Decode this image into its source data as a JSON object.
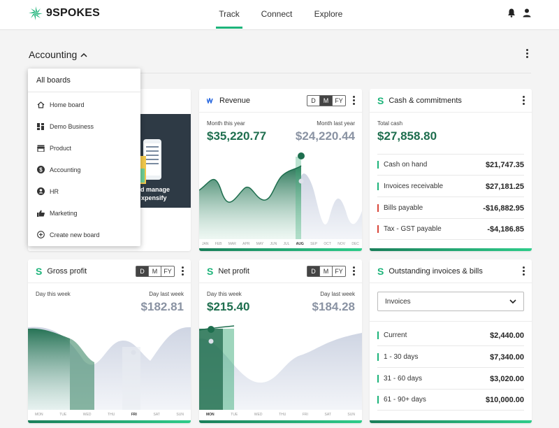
{
  "brand": {
    "name": "9SPOKES"
  },
  "nav": {
    "tabs": [
      "Track",
      "Connect",
      "Explore"
    ]
  },
  "board": {
    "title": "Accounting"
  },
  "dropdown": {
    "title": "All boards",
    "items": [
      {
        "label": "Home board",
        "icon": "home-icon"
      },
      {
        "label": "Demo Business",
        "icon": "dashboard-icon"
      },
      {
        "label": "Product",
        "icon": "store-icon"
      },
      {
        "label": "Accounting",
        "icon": "dollar-circle-icon"
      },
      {
        "label": "HR",
        "icon": "person-circle-icon"
      },
      {
        "label": "Marketing",
        "icon": "thumbs-up-icon"
      },
      {
        "label": "Create new board",
        "icon": "add-circle-icon"
      }
    ]
  },
  "promo": {
    "text_line1": "d manage",
    "text_line2": "xpensify"
  },
  "period": {
    "d": "D",
    "m": "M",
    "fy": "FY"
  },
  "revenue": {
    "title": "Revenue",
    "label_current": "Month this year",
    "label_previous": "Month last year",
    "value_current": "$35,220.77",
    "value_previous": "$24,220.44",
    "selected_period": "M",
    "months": [
      "JAN",
      "FEB",
      "MAR",
      "APR",
      "MAY",
      "JUN",
      "JUL",
      "AUG",
      "SEP",
      "OCT",
      "NOV",
      "DEC"
    ],
    "current_month": "AUG"
  },
  "cash": {
    "title": "Cash & commitments",
    "label_total": "Total cash",
    "total": "$27,858.80",
    "rows": [
      {
        "name": "Cash on hand",
        "value": "$21,747.35",
        "color": "#1db47a"
      },
      {
        "name": "Invoices receivable",
        "value": "$27,181.25",
        "color": "#1db47a"
      },
      {
        "name": "Bills payable",
        "value": "-$16,882.95",
        "color": "#d9463a"
      },
      {
        "name": "Tax - GST payable",
        "value": "-$4,186.85",
        "color": "#d9463a"
      }
    ]
  },
  "gross": {
    "title": "Gross profit",
    "label_current": "Day this week",
    "label_previous": "Day last week",
    "value_previous": "$182.81",
    "selected_period": "D",
    "days": [
      "MON",
      "TUE",
      "WED",
      "THU",
      "FRI",
      "SAT",
      "SUN"
    ],
    "current_day": "FRI"
  },
  "net": {
    "title": "Net profit",
    "label_current": "Day this week",
    "label_previous": "Day last week",
    "value_current": "$215.40",
    "value_previous": "$184.28",
    "selected_period": "D",
    "days": [
      "MON",
      "TUE",
      "WED",
      "THU",
      "FRI",
      "SAT",
      "SUN"
    ],
    "current_day": "MON"
  },
  "outstanding": {
    "title": "Outstanding invoices & bills",
    "select_value": "Invoices",
    "rows": [
      {
        "name": "Current",
        "value": "$2,440.00",
        "color": "#1db47a"
      },
      {
        "name": "1 - 30 days",
        "value": "$7,340.00",
        "color": "#1db47a"
      },
      {
        "name": "31 - 60 days",
        "value": "$3,020.00",
        "color": "#1db47a"
      },
      {
        "name": "61 - 90+ days",
        "value": "$10,000.00",
        "color": "#1db47a"
      }
    ]
  },
  "colors": {
    "accent": "#1db47a",
    "dark_green": "#1e6e4e",
    "muted": "#8a93a3"
  }
}
